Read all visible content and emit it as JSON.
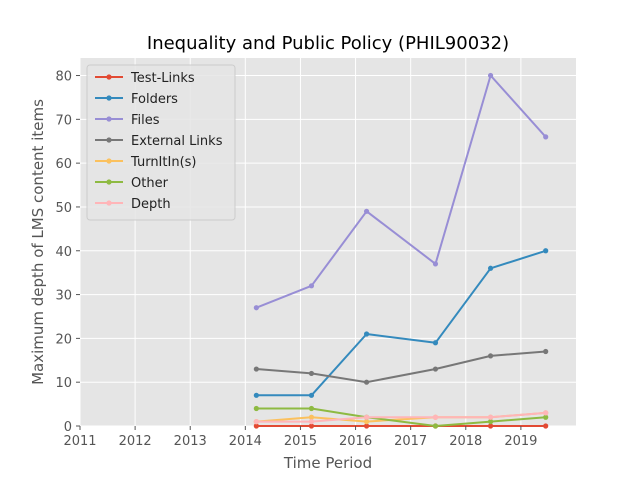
{
  "chart_data": {
    "type": "line",
    "title": "Inequality and Public Policy (PHIL90032)",
    "xlabel": "Time Period",
    "ylabel": "Maximum depth of LMS content items",
    "xlim": [
      2011.0,
      2020.0
    ],
    "ylim": [
      0,
      84
    ],
    "x_ticks": [
      2011,
      2012,
      2013,
      2014,
      2015,
      2016,
      2017,
      2018,
      2019
    ],
    "x_tick_labels": [
      "2011",
      "2012",
      "2013",
      "2014",
      "2015",
      "2016",
      "2017",
      "2018",
      "2019"
    ],
    "y_ticks": [
      0,
      10,
      20,
      30,
      40,
      50,
      60,
      70,
      80
    ],
    "y_tick_labels": [
      "0",
      "10",
      "20",
      "30",
      "40",
      "50",
      "60",
      "70",
      "80"
    ],
    "grid": true,
    "legend_position": "top-left",
    "x": [
      2014.2,
      2015.2,
      2016.2,
      2017.45,
      2018.45,
      2019.45
    ],
    "series": [
      {
        "name": "Test-Links",
        "color": "#e24a33",
        "values": [
          0,
          0,
          0,
          0,
          0,
          0
        ]
      },
      {
        "name": "Folders",
        "color": "#348abd",
        "values": [
          7,
          7,
          21,
          19,
          36,
          40
        ]
      },
      {
        "name": "Files",
        "color": "#988ed5",
        "values": [
          27,
          32,
          49,
          37,
          80,
          66
        ]
      },
      {
        "name": "External Links",
        "color": "#777777",
        "values": [
          13,
          12,
          10,
          13,
          16,
          17
        ]
      },
      {
        "name": "TurnItIn(s)",
        "color": "#fbc15e",
        "values": [
          1,
          2,
          1,
          2,
          2,
          3
        ]
      },
      {
        "name": "Other",
        "color": "#8eba42",
        "values": [
          4,
          4,
          2,
          0,
          1,
          2
        ]
      },
      {
        "name": "Depth",
        "color": "#ffb5b8",
        "values": [
          1,
          1,
          2,
          2,
          2,
          3
        ]
      }
    ]
  }
}
